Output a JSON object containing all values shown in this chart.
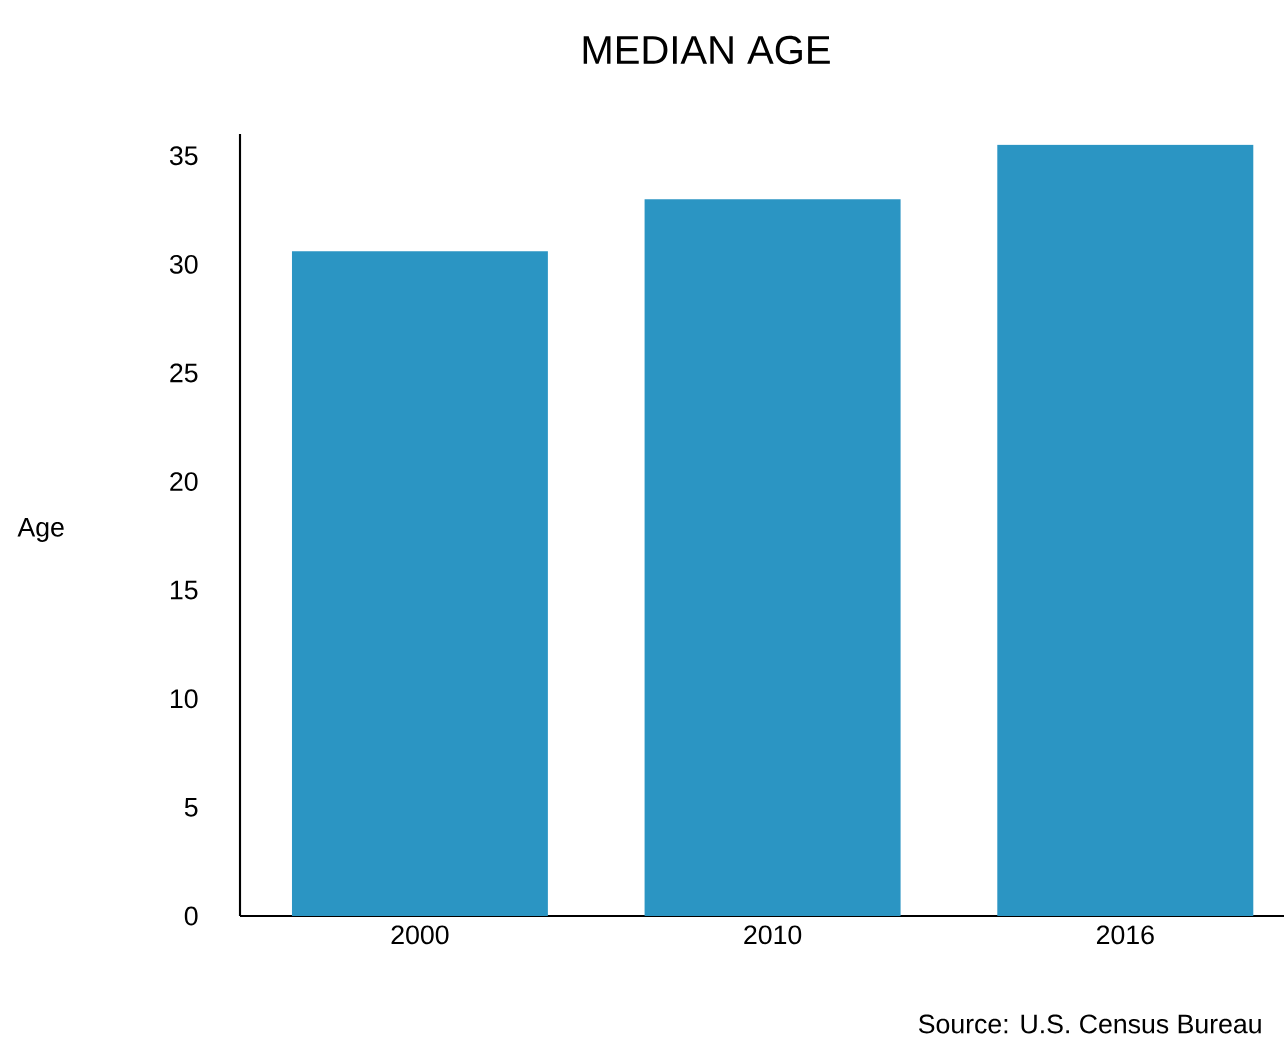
{
  "chart_data": {
    "type": "bar",
    "title": "MEDIAN AGE",
    "ylabel": "Age",
    "categories": [
      "2000",
      "2010",
      "2016"
    ],
    "values": [
      30.6,
      33.0,
      35.5
    ],
    "color": "#2b95c3",
    "ylim": [
      0,
      36
    ],
    "yticks": [
      0,
      5,
      10,
      15,
      20,
      25,
      30,
      35
    ],
    "annotations": [
      "Source: U.S. Census Bureau"
    ]
  }
}
